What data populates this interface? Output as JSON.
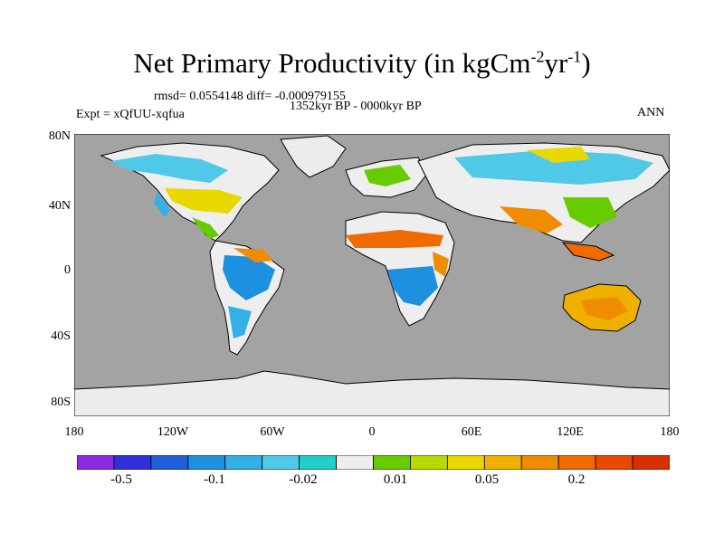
{
  "title": {
    "main": "Net Primary Productivity (in kgCm",
    "sup1": "-2",
    "mid": "yr",
    "sup2": "-1",
    "end": ")"
  },
  "stats": "rmsd= 0.0554148 diff= -0.000979155",
  "period": "1352kyr BP - 0000kyr BP",
  "experiment": "Expt = xQfUU-xqfua",
  "season": "ANN",
  "axes": {
    "lat_labels": [
      "80N",
      "40N",
      "0",
      "40S",
      "80S"
    ],
    "lon_labels": [
      "180",
      "120W",
      "60W",
      "0",
      "60E",
      "120E",
      "180"
    ]
  },
  "colorbar": {
    "colors": [
      "#8a2be2",
      "#3030d8",
      "#1f5fd8",
      "#1e90e0",
      "#33b0e8",
      "#50c8e8",
      "#20d0c8",
      "#eeeeee",
      "#66cc00",
      "#b8d800",
      "#e8d800",
      "#f0b000",
      "#f08c00",
      "#f06a00",
      "#e84a00",
      "#d83000"
    ],
    "labels": [
      "-0.5",
      "-0.1",
      "-0.02",
      "0.01",
      "0.05",
      "0.2"
    ]
  },
  "map_colors": {
    "ocean": "#a3a3a3",
    "ice": "#ececec",
    "coast": "#000000"
  }
}
